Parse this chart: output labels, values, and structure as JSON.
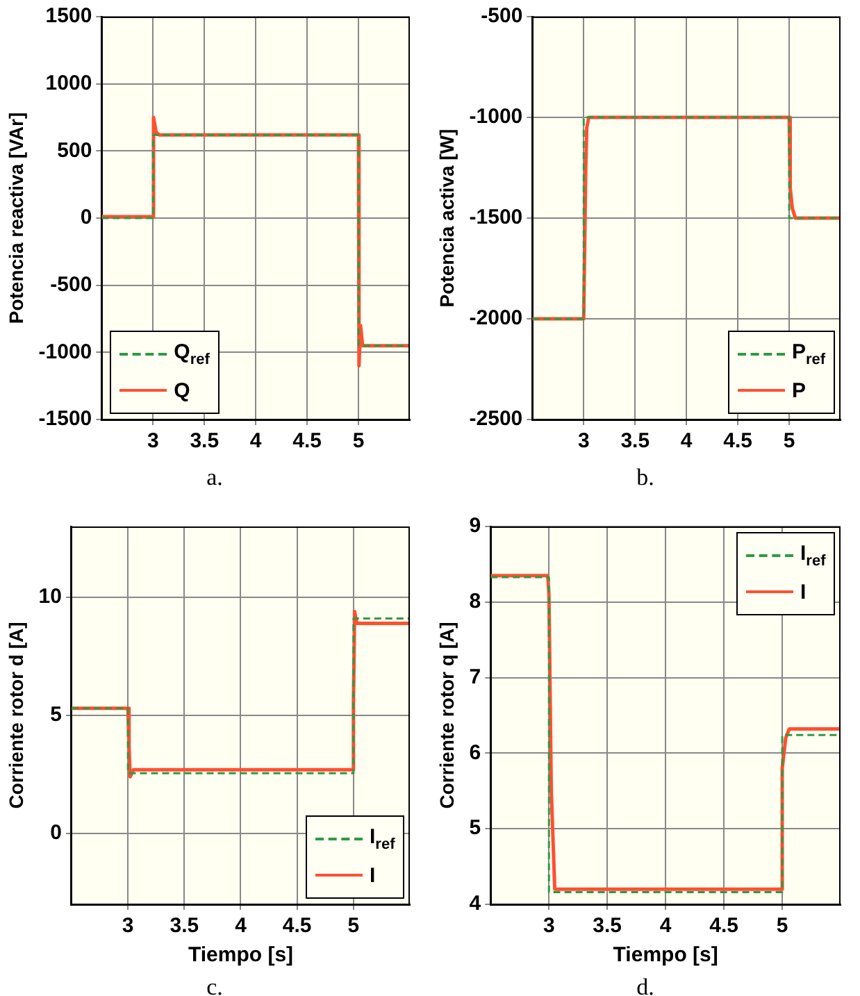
{
  "chart_data": [
    {
      "type": "line",
      "ylabel": "Potencia reactiva [VAr]",
      "annotations": [
        "a."
      ],
      "xlim": [
        2.5,
        5.5
      ],
      "xticks": [
        3,
        3.5,
        4,
        4.5,
        5
      ],
      "ylim": [
        -1500,
        1500
      ],
      "yticks": [
        -1500,
        -1000,
        -500,
        0,
        500,
        1000,
        1500
      ],
      "grid": true,
      "legend": "bottom left",
      "marker": "none",
      "series": [
        {
          "name": "Q$_{ref}$",
          "color": "#2e9a44",
          "line_style": "dashed",
          "x": [
            2.5,
            3,
            3,
            5,
            5,
            5.5
          ],
          "values": [
            0,
            0,
            620,
            620,
            -950,
            -950
          ]
        },
        {
          "name": "Q",
          "color": "#ff5030",
          "line_style": "solid",
          "x": [
            2.5,
            3,
            3,
            3.01,
            3.03,
            3.06,
            5,
            5,
            5.01,
            5.02,
            5.04,
            5.5
          ],
          "values": [
            10,
            10,
            600,
            750,
            640,
            620,
            620,
            -950,
            -1100,
            -800,
            -950,
            -950
          ]
        }
      ]
    },
    {
      "type": "line",
      "ylabel": "Potencia activa [W]",
      "annotations": [
        "b."
      ],
      "xlim": [
        2.5,
        5.5
      ],
      "xticks": [
        3,
        3.5,
        4,
        4.5,
        5
      ],
      "ylim": [
        -2500,
        -500
      ],
      "yticks": [
        -2500,
        -2000,
        -1500,
        -1000,
        -500
      ],
      "grid": true,
      "legend": "bottom right",
      "marker": "none",
      "series": [
        {
          "name": "P$_{ref}$",
          "color": "#2e9a44",
          "line_style": "dashed",
          "x": [
            2.5,
            3,
            3,
            5,
            5,
            5.5
          ],
          "values": [
            -2000,
            -2000,
            -1000,
            -1000,
            -1500,
            -1500
          ]
        },
        {
          "name": "P",
          "color": "#ff5030",
          "line_style": "solid",
          "x": [
            2.5,
            3,
            3.02,
            3.03,
            3.05,
            5,
            5.01,
            5.03,
            5.06,
            5.5
          ],
          "values": [
            -2000,
            -2000,
            -1250,
            -1050,
            -1000,
            -1000,
            -1350,
            -1450,
            -1500,
            -1500
          ]
        }
      ]
    },
    {
      "type": "line",
      "xlabel": "Tiempo [s]",
      "ylabel": "Corriente rotor d [A]",
      "annotations": [
        "c."
      ],
      "xlim": [
        2.5,
        5.5
      ],
      "xticks": [
        3,
        3.5,
        4,
        4.5,
        5
      ],
      "ylim": [
        -3,
        13
      ],
      "yticks": [
        0,
        5,
        10
      ],
      "grid": true,
      "legend": "bottom right",
      "marker": "none",
      "series": [
        {
          "name": "I$_{ref}$",
          "color": "#2e9a44",
          "line_style": "dashed",
          "x": [
            2.5,
            3,
            3,
            5,
            5,
            5.5
          ],
          "values": [
            5.3,
            5.3,
            2.55,
            2.55,
            9.1,
            9.1
          ]
        },
        {
          "name": "I",
          "color": "#ff5030",
          "line_style": "solid",
          "x": [
            2.5,
            3,
            3.01,
            3.02,
            3.05,
            5,
            5,
            5.01,
            5.03,
            5.5
          ],
          "values": [
            5.3,
            5.3,
            3.7,
            2.4,
            2.7,
            2.7,
            5.6,
            9.4,
            8.9,
            8.9
          ]
        }
      ]
    },
    {
      "type": "line",
      "xlabel": "Tiempo [s]",
      "ylabel": "Corriente rotor q [A]",
      "annotations": [
        "d."
      ],
      "xlim": [
        2.5,
        5.5
      ],
      "xticks": [
        3,
        3.5,
        4,
        4.5,
        5
      ],
      "ylim": [
        4,
        9
      ],
      "yticks": [
        4,
        5,
        6,
        7,
        8,
        9
      ],
      "grid": true,
      "legend": "top right",
      "marker": "none",
      "series": [
        {
          "name": "I$_{ref}$",
          "color": "#2e9a44",
          "line_style": "dashed",
          "x": [
            2.5,
            3,
            3,
            5,
            5,
            5.5
          ],
          "values": [
            8.33,
            8.33,
            4.16,
            4.16,
            6.24,
            6.24
          ]
        },
        {
          "name": "I",
          "color": "#ff5030",
          "line_style": "solid",
          "x": [
            2.5,
            2.99,
            3,
            3.02,
            3.05,
            5,
            5,
            5.03,
            5.06,
            5.5
          ],
          "values": [
            8.35,
            8.35,
            8.1,
            5.5,
            4.2,
            4.2,
            5.8,
            6.2,
            6.32,
            6.32
          ]
        }
      ]
    }
  ]
}
